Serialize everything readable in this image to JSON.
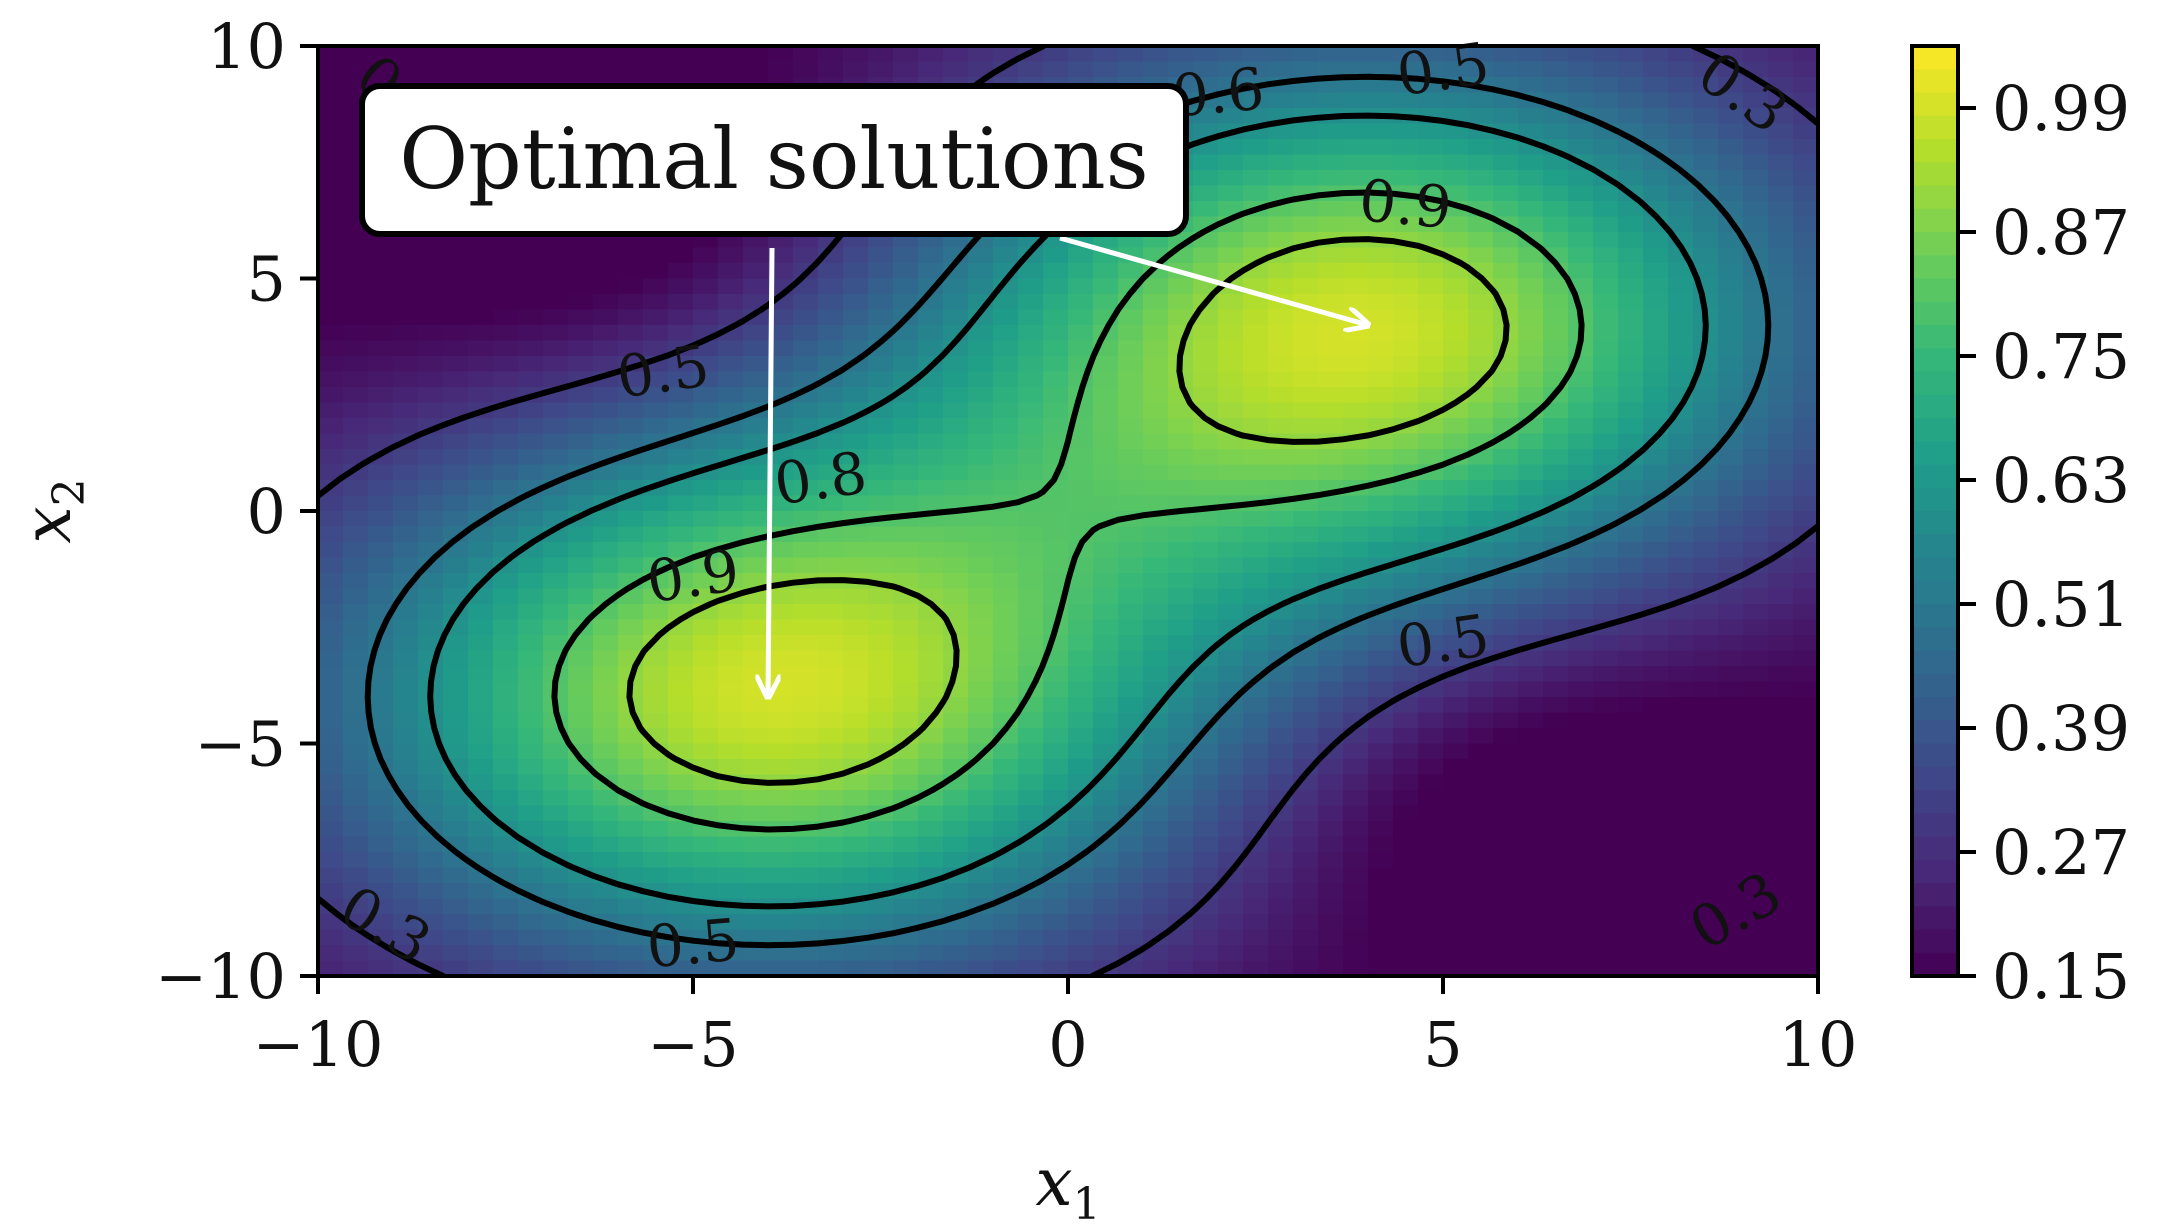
{
  "chart_data": {
    "type": "heatmap",
    "subtype": "filled-contour",
    "title": "",
    "xlabel": "x",
    "xlabel_sub": "1",
    "ylabel": "x",
    "ylabel_sub": "2",
    "xlim": [
      -10,
      10
    ],
    "ylim": [
      -10,
      10
    ],
    "xticks": [
      -10,
      -5,
      0,
      5,
      10
    ],
    "xtick_labels": [
      "−10",
      "−5",
      "0",
      "5",
      "10"
    ],
    "yticks": [
      10,
      5,
      0,
      -5,
      -10
    ],
    "ytick_labels": [
      "10",
      "5",
      "0",
      "−5",
      "−10"
    ],
    "colormap": "viridis",
    "color_range": [
      0.15,
      1.05
    ],
    "colorbar_ticks": [
      0.99,
      0.87,
      0.75,
      0.63,
      0.51,
      0.39,
      0.27,
      0.15
    ],
    "colorbar_tick_labels": [
      "0.99",
      "0.87",
      "0.75",
      "0.63",
      "0.51",
      "0.39",
      "0.27",
      "0.15"
    ],
    "grid": false,
    "maxima": [
      {
        "x": 4,
        "y": 4,
        "value": 1.0
      },
      {
        "x": -4,
        "y": -4,
        "value": 1.0
      }
    ],
    "minima": [
      {
        "x": -6,
        "y": 6,
        "value": 0.4
      },
      {
        "x": 6,
        "y": -6,
        "value": 0.4
      }
    ],
    "contour_levels": [
      0.3,
      0.5,
      0.6,
      0.8,
      0.9
    ],
    "contour_labels": [
      {
        "text": "0.3",
        "x": -8.9,
        "y": 8.9,
        "rotation": 40
      },
      {
        "text": "0.6",
        "x": 2.0,
        "y": 9.0,
        "rotation": -5
      },
      {
        "text": "0.5",
        "x": 5.0,
        "y": 9.5,
        "rotation": -8
      },
      {
        "text": "0.3",
        "x": 9.0,
        "y": 9.0,
        "rotation": 35
      },
      {
        "text": "0.9",
        "x": 4.5,
        "y": 6.6,
        "rotation": 5
      },
      {
        "text": "0.5",
        "x": -5.4,
        "y": 3.0,
        "rotation": -8
      },
      {
        "text": "0.8",
        "x": -3.3,
        "y": 0.7,
        "rotation": -8
      },
      {
        "text": "0.9",
        "x": -5.0,
        "y": -1.4,
        "rotation": -8
      },
      {
        "text": "0.5",
        "x": 5.0,
        "y": -2.8,
        "rotation": -8
      },
      {
        "text": "0.3",
        "x": -9.1,
        "y": -8.9,
        "rotation": 30
      },
      {
        "text": "0.5",
        "x": -5.0,
        "y": -9.3,
        "rotation": -5
      },
      {
        "text": "0.3",
        "x": 8.9,
        "y": -8.6,
        "rotation": -30
      }
    ],
    "annotation": {
      "text": "Optimal solutions",
      "targets": [
        {
          "x": 4,
          "y": 4
        },
        {
          "x": -4,
          "y": -4
        }
      ]
    }
  }
}
